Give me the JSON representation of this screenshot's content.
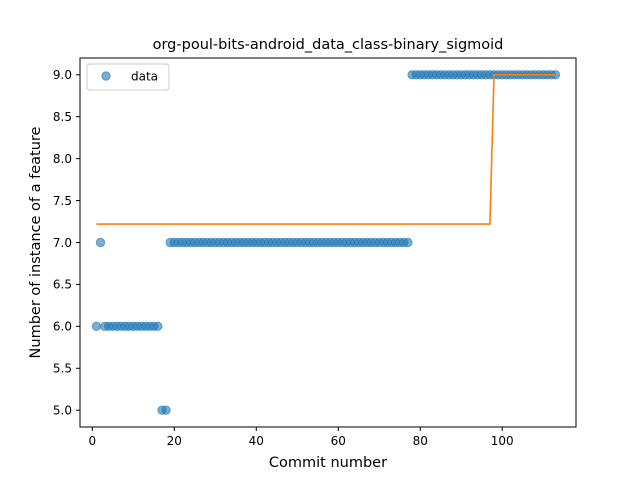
{
  "chart_data": {
    "type": "scatter",
    "title": "org-poul-bits-android_data_class-binary_sigmoid",
    "xlabel": "Commit number",
    "ylabel": "Number of instance of a feature",
    "xlim": [
      -3,
      118
    ],
    "ylim": [
      4.8,
      9.2
    ],
    "xticks": [
      0,
      20,
      40,
      60,
      80,
      100
    ],
    "yticks": [
      5.0,
      5.5,
      6.0,
      6.5,
      7.0,
      7.5,
      8.0,
      8.5,
      9.0
    ],
    "grid": false,
    "legend_position": "upper-left",
    "colors": {
      "data": "#1f77b4",
      "fit": "#ff7f0e"
    },
    "series": [
      {
        "name": "data",
        "kind": "scatter",
        "segments": [
          {
            "x_start": 1,
            "x_end": 1,
            "y": 6.0
          },
          {
            "x_start": 2,
            "x_end": 2,
            "y": 7.0
          },
          {
            "x_start": 3,
            "x_end": 16,
            "y": 6.0
          },
          {
            "x_start": 17,
            "x_end": 18,
            "y": 5.0
          },
          {
            "x_start": 19,
            "x_end": 77,
            "y": 7.0
          },
          {
            "x_start": 78,
            "x_end": 113,
            "y": 9.0
          }
        ]
      },
      {
        "name": "",
        "kind": "line",
        "points": [
          [
            1,
            7.22
          ],
          [
            97,
            7.22
          ],
          [
            98,
            9.0
          ],
          [
            113,
            9.0
          ]
        ]
      }
    ]
  }
}
